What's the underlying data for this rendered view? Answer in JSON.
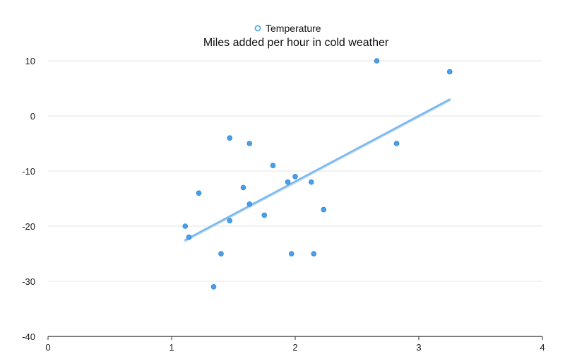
{
  "chart_data": {
    "type": "scatter",
    "title": "Miles added per hour in cold weather",
    "xlabel": "",
    "ylabel": "",
    "xlim": [
      0,
      4
    ],
    "ylim": [
      -40,
      10
    ],
    "x_ticks": [
      0,
      1,
      2,
      3,
      4
    ],
    "y_ticks": [
      10,
      0,
      -10,
      -20,
      -30,
      -40
    ],
    "grid": "horizontal",
    "legend_position": "top-center",
    "colors": {
      "points": "#4a9fe8",
      "trendline": "#7ab8ee",
      "grid": "#e6e6e6",
      "axis": "#333333"
    },
    "series": [
      {
        "name": "Temperature",
        "points": [
          {
            "x": 1.11,
            "y": -20
          },
          {
            "x": 1.14,
            "y": -22
          },
          {
            "x": 1.22,
            "y": -14
          },
          {
            "x": 1.34,
            "y": -31
          },
          {
            "x": 1.4,
            "y": -25
          },
          {
            "x": 1.47,
            "y": -4
          },
          {
            "x": 1.47,
            "y": -19
          },
          {
            "x": 1.58,
            "y": -13
          },
          {
            "x": 1.63,
            "y": -5
          },
          {
            "x": 1.63,
            "y": -16
          },
          {
            "x": 1.75,
            "y": -18
          },
          {
            "x": 1.82,
            "y": -9
          },
          {
            "x": 1.94,
            "y": -12
          },
          {
            "x": 1.97,
            "y": -25
          },
          {
            "x": 2.0,
            "y": -11
          },
          {
            "x": 2.13,
            "y": -12
          },
          {
            "x": 2.15,
            "y": -25
          },
          {
            "x": 2.23,
            "y": -17
          },
          {
            "x": 2.66,
            "y": 10
          },
          {
            "x": 2.82,
            "y": -5
          },
          {
            "x": 3.25,
            "y": 8
          }
        ]
      }
    ],
    "trendline": {
      "x": [
        1.11,
        3.25
      ],
      "y": [
        -22.5,
        3.0
      ]
    }
  }
}
